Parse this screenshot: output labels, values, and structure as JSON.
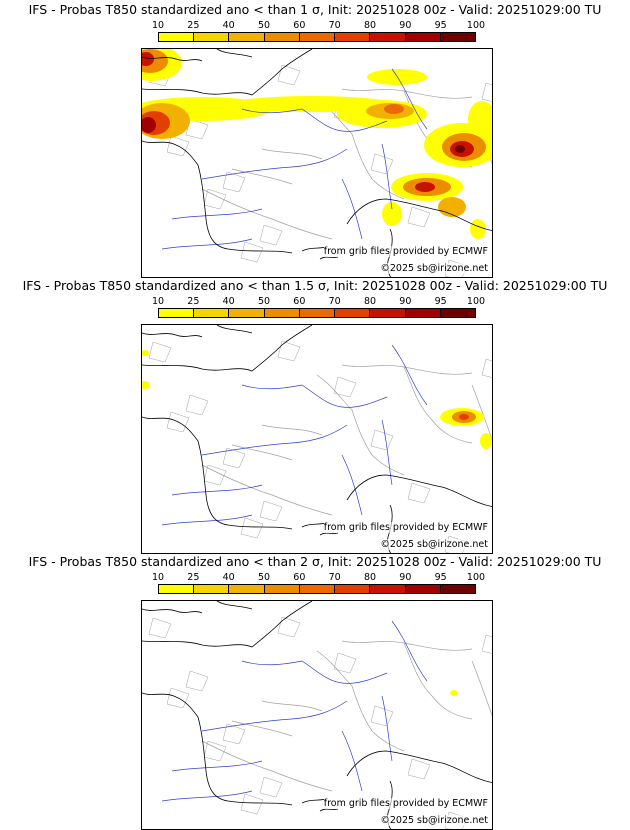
{
  "panels": [
    {
      "title": "IFS - Probas T850  standardized ano < than 1 σ, Init: 20251028 00z - Valid: 20251029:00 TU",
      "colorbar": {
        "ticks": [
          "10",
          "25",
          "40",
          "50",
          "60",
          "70",
          "80",
          "90",
          "95",
          "100"
        ]
      },
      "source_note": "from grib files provided by ECMWF",
      "copyright": "©2025 sb@irizone.net"
    },
    {
      "title": "IFS - Probas T850  standardized ano < than 1.5 σ, Init: 20251028 00z - Valid: 20251029:00 TU",
      "colorbar": {
        "ticks": [
          "10",
          "25",
          "40",
          "50",
          "60",
          "70",
          "80",
          "90",
          "95",
          "100"
        ]
      },
      "source_note": "from grib files provided by ECMWF",
      "copyright": "©2025 sb@irizone.net"
    },
    {
      "title": "IFS - Probas T850  standardized ano < than 2 σ, Init: 20251028 00z - Valid: 20251029:00 TU",
      "colorbar": {
        "ticks": [
          "10",
          "25",
          "40",
          "50",
          "60",
          "70",
          "80",
          "90",
          "95",
          "100"
        ]
      },
      "source_note": "from grib files provided by ECMWF",
      "copyright": "©2025 sb@irizone.net"
    }
  ],
  "colors": {
    "scale": [
      "#ffff00",
      "#f5d400",
      "#f2b100",
      "#ee8c00",
      "#ea6a00",
      "#e33f00",
      "#c81200",
      "#a00000",
      "#6e0000"
    ],
    "coast": "#000000",
    "borders": "#a0a0a0",
    "rivers": "#3040d0"
  }
}
